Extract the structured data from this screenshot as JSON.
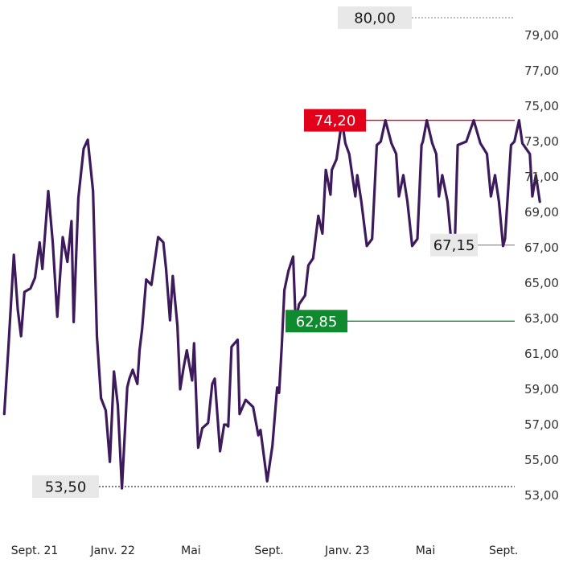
{
  "chart_data": {
    "type": "line",
    "y_axis": {
      "min": 53.0,
      "max": 80.0,
      "side": "right"
    },
    "y_ticks": [
      "79,00",
      "77,00",
      "75,00",
      "73,00",
      "71,00",
      "69,00",
      "67,00",
      "65,00",
      "63,00",
      "61,00",
      "59,00",
      "57,00",
      "55,00",
      "53,00"
    ],
    "y_tick_values": [
      79,
      77,
      75,
      73,
      71,
      69,
      67,
      65,
      63,
      61,
      59,
      57,
      55,
      53
    ],
    "x_ticks": [
      {
        "label": "Sept. 21",
        "x": 0
      },
      {
        "label": "Janv. 22",
        "x": 4
      },
      {
        "label": "Mai",
        "x": 8
      },
      {
        "label": "Sept.",
        "x": 12
      },
      {
        "label": "Janv. 23",
        "x": 16
      },
      {
        "label": "Mai",
        "x": 20
      },
      {
        "label": "Sept.",
        "x": 24
      }
    ],
    "series": [
      {
        "color": "#3d1a5b",
        "x": [
          -1.55,
          -1.34,
          -1.06,
          -0.86,
          -0.69,
          -0.52,
          -0.21,
          0.02,
          0.26,
          0.4,
          0.7,
          0.93,
          1.16,
          1.44,
          1.68,
          1.89,
          2.0,
          2.24,
          2.51,
          2.72,
          2.99,
          3.19,
          3.4,
          3.64,
          3.85,
          4.06,
          4.26,
          4.47,
          4.74,
          4.85,
          5.02,
          5.26,
          5.37,
          5.5,
          5.71,
          5.98,
          6.32,
          6.59,
          6.73,
          6.93,
          7.07,
          7.31,
          7.45,
          7.62,
          7.79,
          8.06,
          8.16,
          8.37,
          8.58,
          8.88,
          9.09,
          9.22,
          9.49,
          9.7,
          9.8,
          9.91,
          10.08,
          10.39,
          10.49,
          10.8,
          11.18,
          11.45,
          11.56,
          11.9,
          12.17,
          12.41,
          12.51,
          12.65,
          12.78,
          12.99,
          13.23,
          13.36,
          13.53,
          13.84,
          14.01,
          14.25,
          14.52,
          14.73,
          14.9,
          15.14,
          15.21,
          15.45,
          15.73,
          15.9,
          16.1,
          16.41,
          16.51,
          16.72,
          17.0,
          17.27,
          17.51,
          17.71,
          17.95,
          18.26,
          18.5,
          18.64,
          18.87,
          19.08,
          19.32,
          19.59,
          19.8,
          19.87,
          20.07,
          20.35,
          20.55,
          20.69,
          20.86,
          21.13,
          21.34,
          21.51,
          21.65,
          22.09,
          22.47,
          22.81,
          23.15,
          23.35,
          23.56,
          23.76,
          23.97,
          24.07,
          24.38,
          24.55,
          24.79,
          24.96,
          25.34,
          25.47,
          25.65,
          25.85
        ],
        "values": [
          57.6,
          61.3,
          66.6,
          63.5,
          62.0,
          64.5,
          64.7,
          65.3,
          67.3,
          65.8,
          70.2,
          67.3,
          63.1,
          67.6,
          66.2,
          68.5,
          62.8,
          69.8,
          72.6,
          73.1,
          70.2,
          62.0,
          58.5,
          57.8,
          54.9,
          60.0,
          58.1,
          53.4,
          59.1,
          59.6,
          60.1,
          59.3,
          61.2,
          62.4,
          65.2,
          64.9,
          67.6,
          67.3,
          65.8,
          62.9,
          65.4,
          62.6,
          59.0,
          60.2,
          61.2,
          59.5,
          61.6,
          55.7,
          56.8,
          57.1,
          59.3,
          59.6,
          55.5,
          57.0,
          57.0,
          56.9,
          61.4,
          61.8,
          57.6,
          58.4,
          58.0,
          56.4,
          56.7,
          53.8,
          55.8,
          59.1,
          58.8,
          61.5,
          64.6,
          65.7,
          66.5,
          62.8,
          63.8,
          64.3,
          66.0,
          66.4,
          68.8,
          67.8,
          71.4,
          70.0,
          71.4,
          72.0,
          74.2,
          72.9,
          72.3,
          69.9,
          71.1,
          69.6,
          67.1,
          67.5,
          72.8,
          73.0,
          74.2,
          72.9,
          72.3,
          69.9,
          71.1,
          69.6,
          67.1,
          67.5,
          72.8,
          73.0,
          74.2,
          72.9,
          72.3,
          69.9,
          71.1,
          69.6,
          67.1,
          67.5,
          72.8,
          73.0,
          74.2,
          72.9,
          72.3,
          69.9,
          71.1,
          69.6,
          67.1,
          67.5,
          72.8,
          73.0,
          74.2,
          72.9,
          72.3,
          69.9,
          71.1,
          69.6
        ]
      }
    ],
    "reference_lines": [
      {
        "value": 80.0,
        "label": "80,00",
        "style": "dotted",
        "line_color": "#9a9a9a",
        "label_bg": "#e8e8e8",
        "label_color": "#1a1a1a"
      },
      {
        "value": 74.2,
        "label": "74,20",
        "style": "solid",
        "line_color": "#e2001a",
        "label_bg": "#e2001a",
        "label_color": "#ffffff"
      },
      {
        "value": 67.15,
        "label": "67,15",
        "style": "solid",
        "line_color": "#9a9a9a",
        "label_bg": "#e8e8e8",
        "label_color": "#1a1a1a"
      },
      {
        "value": 62.85,
        "label": "62,85",
        "style": "solid",
        "line_color": "#0f8a2e",
        "label_bg": "#0f8a2e",
        "label_color": "#ffffff"
      },
      {
        "value": 53.5,
        "label": "53,50",
        "style": "dotted",
        "line_color": "#333333",
        "label_bg": "#e8e8e8",
        "label_color": "#1a1a1a"
      }
    ]
  }
}
